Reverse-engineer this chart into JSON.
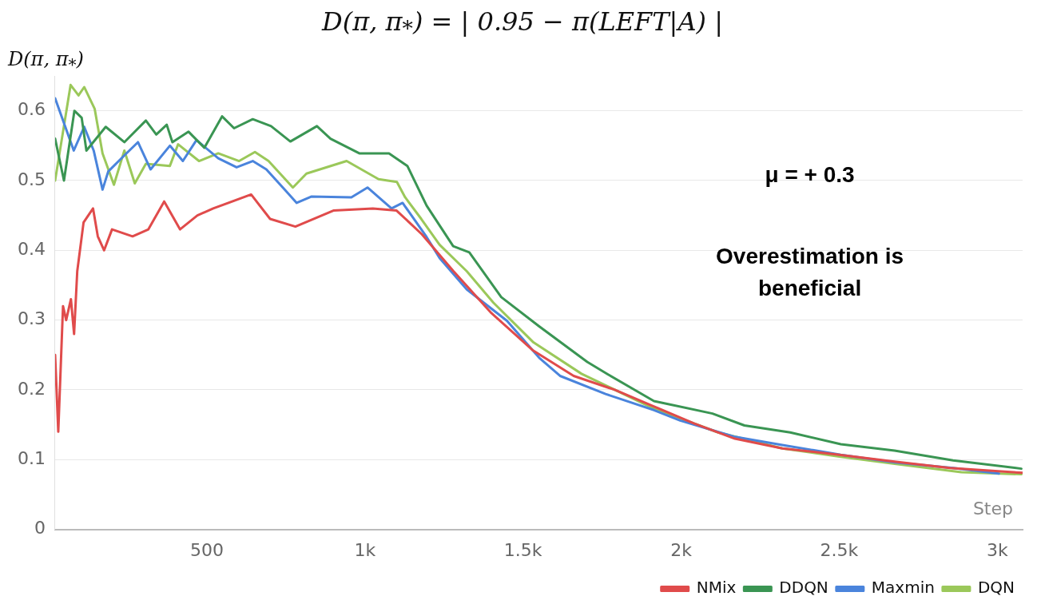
{
  "chart_data": {
    "type": "line",
    "title": "D(π, π$_{*}$) = | 0.95 − π(LEFT|A) |",
    "ylabel": "D(π, π$_{*}$)",
    "xlabel": "Step",
    "annotations": [
      "μ = + 0.3",
      "Overestimation is beneficial"
    ],
    "xlim": [
      20,
      3080
    ],
    "xticks": [
      500,
      {
        "value": 1000,
        "label": "1k"
      },
      {
        "value": 1500,
        "label": "1.5k"
      },
      {
        "value": 2000,
        "label": "2k"
      },
      {
        "value": 2500,
        "label": "2.5k"
      },
      {
        "value": 3000,
        "label": "3k"
      }
    ],
    "ylim": [
      0,
      0.65
    ],
    "yticks": [
      0,
      0.1,
      0.2,
      0.3,
      0.4,
      0.5,
      0.6
    ],
    "grid": "y",
    "legend": "bottom right",
    "marker": "none",
    "line_style": "solid",
    "series": [
      {
        "name": "NMix",
        "color": "#e04b4b",
        "x": [
          20,
          30,
          45,
          55,
          70,
          80,
          90,
          110,
          140,
          155,
          175,
          200,
          265,
          315,
          365,
          415,
          470,
          520,
          640,
          700,
          780,
          900,
          1025,
          1100,
          1180,
          1280,
          1400,
          1530,
          1660,
          1790,
          1910,
          2040,
          2170,
          2320,
          2500,
          2680,
          2850,
          3080
        ],
        "values": [
          0.25,
          0.14,
          0.32,
          0.3,
          0.33,
          0.28,
          0.37,
          0.44,
          0.46,
          0.42,
          0.4,
          0.43,
          0.42,
          0.43,
          0.47,
          0.43,
          0.45,
          0.46,
          0.48,
          0.445,
          0.434,
          0.457,
          0.46,
          0.457,
          0.423,
          0.37,
          0.31,
          0.257,
          0.22,
          0.2,
          0.177,
          0.152,
          0.13,
          0.116,
          0.107,
          0.097,
          0.088,
          0.081
        ]
      },
      {
        "name": "DDQN",
        "color": "#3a9553",
        "x": [
          20,
          48,
          81,
          104,
          119,
          180,
          239,
          307,
          340,
          373,
          391,
          442,
          492,
          548,
          586,
          645,
          703,
          764,
          848,
          891,
          982,
          1076,
          1134,
          1195,
          1279,
          1330,
          1431,
          1551,
          1703,
          1769,
          1914,
          2099,
          2200,
          2345,
          2505,
          2675,
          2860,
          3076
        ],
        "values": [
          0.56,
          0.5,
          0.6,
          0.59,
          0.543,
          0.577,
          0.555,
          0.586,
          0.566,
          0.58,
          0.555,
          0.57,
          0.547,
          0.592,
          0.575,
          0.588,
          0.578,
          0.556,
          0.578,
          0.56,
          0.539,
          0.539,
          0.521,
          0.464,
          0.406,
          0.397,
          0.333,
          0.291,
          0.24,
          0.222,
          0.184,
          0.166,
          0.149,
          0.139,
          0.122,
          0.113,
          0.099,
          0.087
        ]
      },
      {
        "name": "Maxmin",
        "color": "#4a84dc",
        "x": [
          20,
          79,
          112,
          142,
          170,
          188,
          239,
          282,
          322,
          383,
          424,
          467,
          536,
          594,
          645,
          688,
          746,
          784,
          830,
          957,
          1008,
          1084,
          1119,
          1195,
          1236,
          1322,
          1449,
          1551,
          1617,
          1761,
          1914,
          1997,
          2167,
          2320,
          2505,
          2675,
          2860,
          3005
        ],
        "values": [
          0.618,
          0.543,
          0.577,
          0.543,
          0.487,
          0.513,
          0.536,
          0.555,
          0.516,
          0.55,
          0.528,
          0.558,
          0.532,
          0.519,
          0.528,
          0.516,
          0.487,
          0.468,
          0.477,
          0.476,
          0.49,
          0.46,
          0.468,
          0.419,
          0.389,
          0.344,
          0.299,
          0.246,
          0.22,
          0.194,
          0.171,
          0.156,
          0.133,
          0.121,
          0.107,
          0.096,
          0.088,
          0.08
        ]
      },
      {
        "name": "DQN",
        "color": "#9bc85a",
        "x": [
          20,
          69,
          94,
          112,
          145,
          170,
          206,
          239,
          272,
          307,
          383,
          409,
          475,
          536,
          602,
          652,
          695,
          772,
          815,
          942,
          1043,
          1101,
          1127,
          1178,
          1236,
          1322,
          1406,
          1533,
          1685,
          1914,
          2117,
          2320,
          2505,
          2675,
          2886,
          3076
        ],
        "values": [
          0.5,
          0.637,
          0.622,
          0.634,
          0.603,
          0.539,
          0.494,
          0.543,
          0.496,
          0.524,
          0.521,
          0.552,
          0.528,
          0.539,
          0.528,
          0.541,
          0.528,
          0.49,
          0.51,
          0.528,
          0.502,
          0.498,
          0.476,
          0.445,
          0.408,
          0.37,
          0.325,
          0.268,
          0.223,
          0.173,
          0.139,
          0.116,
          0.104,
          0.094,
          0.082,
          0.079
        ]
      }
    ]
  }
}
